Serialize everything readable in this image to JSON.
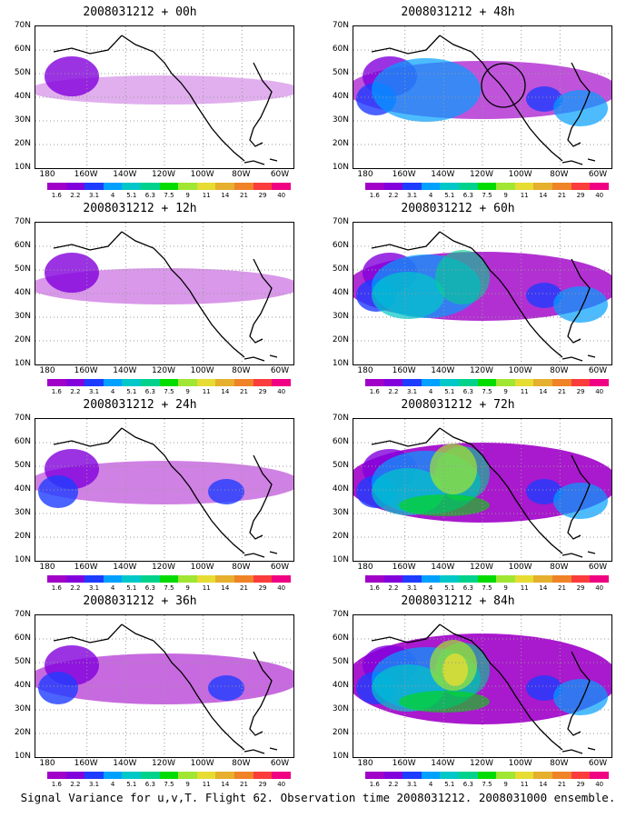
{
  "panels": [
    {
      "title": "2008031212 + 00h",
      "intensity": 0.15,
      "circle": false
    },
    {
      "title": "2008031212 + 48h",
      "intensity": 0.55,
      "circle": true
    },
    {
      "title": "2008031212 + 12h",
      "intensity": 0.25,
      "circle": false
    },
    {
      "title": "2008031212 + 60h",
      "intensity": 0.7,
      "circle": false
    },
    {
      "title": "2008031212 + 24h",
      "intensity": 0.35,
      "circle": false
    },
    {
      "title": "2008031212 + 72h",
      "intensity": 0.85,
      "circle": false
    },
    {
      "title": "2008031212 + 36h",
      "intensity": 0.45,
      "circle": false
    },
    {
      "title": "2008031212 + 84h",
      "intensity": 1.0,
      "circle": false
    }
  ],
  "lat_labels": [
    "70N",
    "60N",
    "50N",
    "40N",
    "30N",
    "20N",
    "10N"
  ],
  "lon_labels": [
    "180",
    "160W",
    "140W",
    "120W",
    "100W",
    "80W",
    "60W"
  ],
  "colorbar": {
    "values": [
      "1.6",
      "2.2",
      "3.1",
      "4",
      "5.1",
      "6.3",
      "7.5",
      "9",
      "11",
      "14",
      "21",
      "29",
      "40"
    ],
    "colors": [
      "#a000c8",
      "#8200dc",
      "#1e3cff",
      "#00a0ff",
      "#00c8c8",
      "#00d28c",
      "#00dc00",
      "#a0e632",
      "#e6dc32",
      "#e6af2d",
      "#f08228",
      "#fa3c3c",
      "#f00082"
    ]
  },
  "caption": "Signal Variance for u,v,T. Flight 62. Observation time 2008031212. 2008031000 ensemble."
}
